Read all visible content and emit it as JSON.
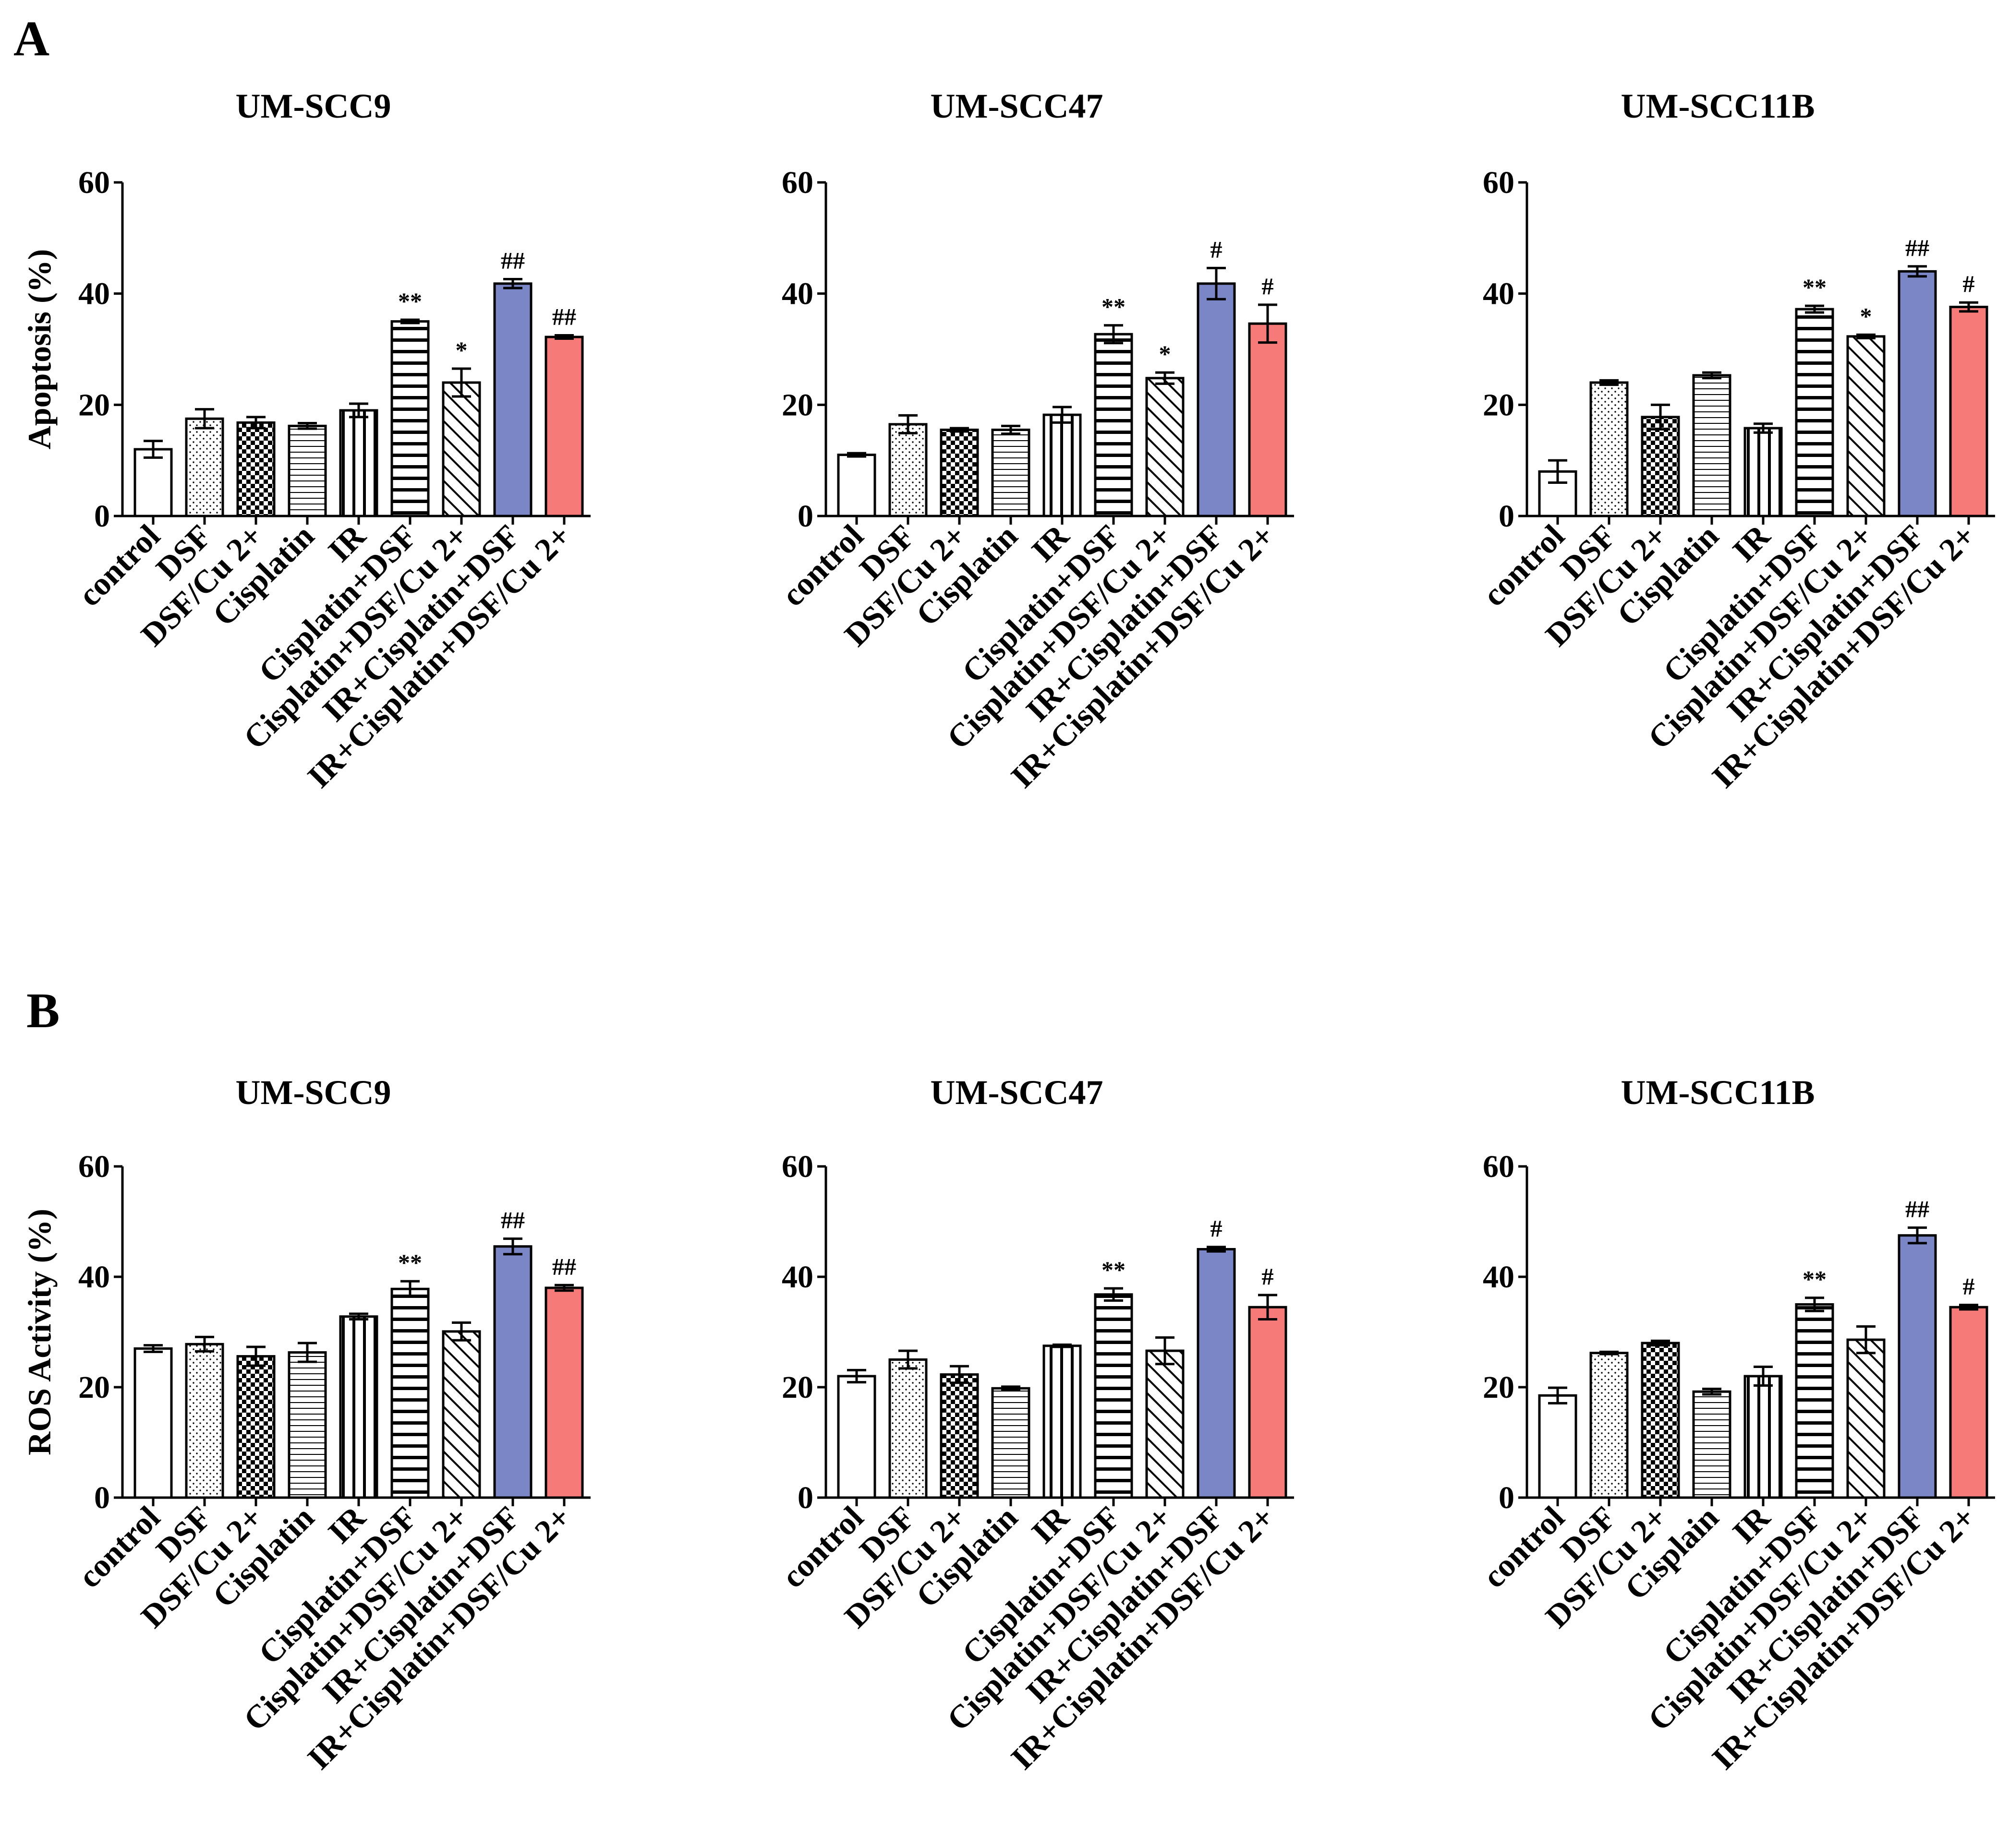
{
  "figure": {
    "panels": [
      {
        "letter": "A",
        "ylabel": "Apoptosis (%)"
      },
      {
        "letter": "B",
        "ylabel": "ROS Activity (%)"
      }
    ]
  },
  "colors": {
    "combo_dsf": "#7b86c6",
    "combo_dsf_cu": "#f57a78",
    "outline": "#000000",
    "background": "#ffffff"
  },
  "patterns": [
    "open",
    "dots",
    "checker",
    "fine-horizontal",
    "vertical",
    "horizontal",
    "diagonal",
    "solid-blue",
    "solid-red"
  ],
  "chart_data": [
    {
      "type": "bar",
      "panel": "A",
      "title": "UM-SCC9",
      "ylabel": "Apoptosis (%)",
      "ylim": [
        0,
        60
      ],
      "yticks": [
        0,
        20,
        40,
        60
      ],
      "categories": [
        "control",
        "DSF",
        "DSF/Cu 2+",
        "Cisplatin",
        "IR",
        "Cisplatin+DSF",
        "Cisplatin+DSF/Cu 2+",
        "IR+Cisplatin+DSF",
        "IR+Cisplatin+DSF/Cu 2+"
      ],
      "values": [
        12,
        17.5,
        16.8,
        16.2,
        19,
        35,
        24,
        41.8,
        32.2
      ],
      "errors": [
        1.5,
        1.7,
        1,
        0.5,
        1.2,
        0.3,
        2.5,
        0.8,
        0.3
      ],
      "annotations": [
        "",
        "",
        "",
        "",
        "",
        "**",
        "*",
        "##",
        "##"
      ]
    },
    {
      "type": "bar",
      "panel": "A",
      "title": "UM-SCC47",
      "ylabel": "Apoptosis (%)",
      "ylim": [
        0,
        60
      ],
      "yticks": [
        0,
        20,
        40,
        60
      ],
      "categories": [
        "control",
        "DSF",
        "DSF/Cu 2+",
        "Cisplatin",
        "IR",
        "Cisplatin+DSF",
        "Cisplatin+DSF/Cu 2+",
        "IR+Cisplatin+DSF",
        "IR+Cisplatin+DSF/Cu 2+"
      ],
      "values": [
        11,
        16.5,
        15.5,
        15.5,
        18.2,
        32.7,
        24.8,
        41.8,
        34.6
      ],
      "errors": [
        0.3,
        1.6,
        0.3,
        0.7,
        1.4,
        1.6,
        1,
        2.8,
        3.4
      ],
      "annotations": [
        "",
        "",
        "",
        "",
        "",
        "**",
        "*",
        "#",
        "#"
      ]
    },
    {
      "type": "bar",
      "panel": "A",
      "title": "UM-SCC11B",
      "ylabel": "Apoptosis (%)",
      "ylim": [
        0,
        60
      ],
      "yticks": [
        0,
        20,
        40,
        60
      ],
      "categories": [
        "control",
        "DSF",
        "DSF/Cu 2+",
        "Cisplatin",
        "IR",
        "Cisplatin+DSF",
        "Cisplatin+DSF/Cu 2+",
        "IR+Cisplatin+DSF",
        "IR+Cisplatin+DSF/Cu 2+"
      ],
      "values": [
        8,
        24,
        17.8,
        25.3,
        15.8,
        37.2,
        32.3,
        44,
        37.6
      ],
      "errors": [
        2,
        0.4,
        2.2,
        0.5,
        0.8,
        0.6,
        0.3,
        0.9,
        0.8
      ],
      "annotations": [
        "",
        "",
        "",
        "",
        "",
        "**",
        "*",
        "##",
        "#"
      ]
    },
    {
      "type": "bar",
      "panel": "B",
      "title": "UM-SCC9",
      "ylabel": "ROS Activity (%)",
      "ylim": [
        0,
        60
      ],
      "yticks": [
        0,
        20,
        40,
        60
      ],
      "categories": [
        "control",
        "DSF",
        "DSF/Cu 2+",
        "Cisplatin",
        "IR",
        "Cisplatin+DSF",
        "Cisplatin+DSF/Cu 2+",
        "IR+Cisplatin+DSF",
        "IR+Cisplatin+DSF/Cu 2+"
      ],
      "values": [
        27,
        27.8,
        25.6,
        26.3,
        32.8,
        37.8,
        30.1,
        45.5,
        38
      ],
      "errors": [
        0.6,
        1.3,
        1.7,
        1.7,
        0.5,
        1.4,
        1.6,
        1.4,
        0.5
      ],
      "annotations": [
        "",
        "",
        "",
        "",
        "",
        "**",
        "",
        "##",
        "##"
      ]
    },
    {
      "type": "bar",
      "panel": "B",
      "title": "UM-SCC47",
      "ylabel": "ROS Activity (%)",
      "ylim": [
        0,
        60
      ],
      "yticks": [
        0,
        20,
        40,
        60
      ],
      "categories": [
        "control",
        "DSF",
        "DSF/Cu 2+",
        "Cisplatin",
        "IR",
        "Cisplatin+DSF",
        "Cisplatin+DSF/Cu 2+",
        "IR+Cisplatin+DSF",
        "IR+Cisplatin+DSF/Cu 2+"
      ],
      "values": [
        22,
        25,
        22.3,
        19.8,
        27.5,
        36.8,
        26.6,
        45,
        34.5
      ],
      "errors": [
        1.1,
        1.6,
        1.5,
        0.3,
        0.2,
        1.1,
        2.4,
        0.4,
        2.2
      ],
      "annotations": [
        "",
        "",
        "",
        "",
        "",
        "**",
        "",
        "#",
        "#"
      ]
    },
    {
      "type": "bar",
      "panel": "B",
      "title": "UM-SCC11B",
      "ylabel": "ROS Activity (%)",
      "ylim": [
        0,
        60
      ],
      "yticks": [
        0,
        20,
        40,
        60
      ],
      "categories": [
        "control",
        "DSF",
        "DSF/Cu 2+",
        "Cisplain",
        "IR",
        "Cisplatin+DSF",
        "Cisplatin+DSF/Cu 2+",
        "IR+Cisplatin+DSF",
        "IR+Cisplatin+DSF/Cu 2+"
      ],
      "values": [
        18.5,
        26.2,
        28,
        19.2,
        22,
        35,
        28.6,
        47.5,
        34.5
      ],
      "errors": [
        1.4,
        0.2,
        0.4,
        0.5,
        1.7,
        1.2,
        2.4,
        1.4,
        0.4
      ],
      "annotations": [
        "",
        "",
        "",
        "",
        "",
        "**",
        "",
        "##",
        "#"
      ]
    }
  ]
}
